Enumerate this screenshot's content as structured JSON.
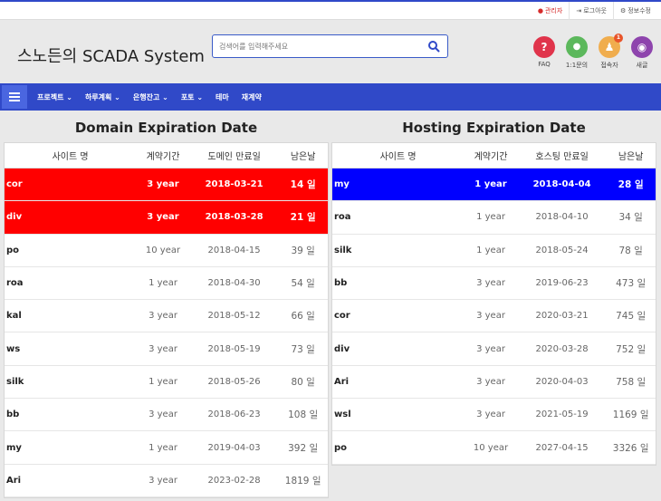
{
  "topbar": {
    "links": [
      {
        "icon": "user-icon",
        "label": "관리자"
      },
      {
        "icon": "logout-icon",
        "label": "로그아웃"
      },
      {
        "icon": "gear-icon",
        "label": "정보수정"
      }
    ]
  },
  "header": {
    "title": "스노든의 SCADA System",
    "search_placeholder": "검색어를 입력해주세요",
    "quick_buttons": [
      {
        "icon": "question-icon",
        "glyph": "?",
        "color": "#e0344b",
        "label": "FAQ"
      },
      {
        "icon": "chat-icon",
        "glyph": "●",
        "color": "#5cb85c",
        "label": "1:1문의"
      },
      {
        "icon": "visitor-icon",
        "glyph": "♟",
        "color": "#f0ad4e",
        "label": "접속자",
        "badge": "1"
      },
      {
        "icon": "new-post-icon",
        "glyph": "◉",
        "color": "#8e44ad",
        "label": "새글"
      }
    ]
  },
  "nav": {
    "items": [
      "프로젝트 ⌄",
      "하루계획 ⌄",
      "은행잔고 ⌄",
      "포토 ⌄",
      "테마",
      "재계약"
    ]
  },
  "domain": {
    "title": "Domain Expiration Date",
    "columns": [
      "사이트 명",
      "계약기간",
      "도메인 만료일",
      "남은날"
    ],
    "rows": [
      {
        "site": "cor",
        "term": "3 year",
        "date": "2018-03-21",
        "days": "14 일",
        "hl": "red"
      },
      {
        "site": "div",
        "term": "3 year",
        "date": "2018-03-28",
        "days": "21 일",
        "hl": "red"
      },
      {
        "site": "po",
        "term": "10 year",
        "date": "2018-04-15",
        "days": "39 일",
        "hl": ""
      },
      {
        "site": "roa",
        "term": "1 year",
        "date": "2018-04-30",
        "days": "54 일",
        "hl": ""
      },
      {
        "site": "kal",
        "term": "3 year",
        "date": "2018-05-12",
        "days": "66 일",
        "hl": ""
      },
      {
        "site": "ws",
        "term": "3 year",
        "date": "2018-05-19",
        "days": "73 일",
        "hl": ""
      },
      {
        "site": "silk",
        "term": "1 year",
        "date": "2018-05-26",
        "days": "80 일",
        "hl": ""
      },
      {
        "site": "bb",
        "term": "3 year",
        "date": "2018-06-23",
        "days": "108 일",
        "hl": ""
      },
      {
        "site": "my",
        "term": "1 year",
        "date": "2019-04-03",
        "days": "392 일",
        "hl": ""
      },
      {
        "site": "Ari",
        "term": "3 year",
        "date": "2023-02-28",
        "days": "1819 일",
        "hl": ""
      }
    ]
  },
  "hosting": {
    "title": "Hosting Expiration Date",
    "columns": [
      "사이트 명",
      "계약기간",
      "호스팅 만료일",
      "남은날"
    ],
    "rows": [
      {
        "site": "my",
        "term": "1 year",
        "date": "2018-04-04",
        "days": "28 일",
        "hl": "blue"
      },
      {
        "site": "roa",
        "term": "1 year",
        "date": "2018-04-10",
        "days": "34 일",
        "hl": ""
      },
      {
        "site": "silk",
        "term": "1 year",
        "date": "2018-05-24",
        "days": "78 일",
        "hl": ""
      },
      {
        "site": "bb",
        "term": "3 year",
        "date": "2019-06-23",
        "days": "473 일",
        "hl": ""
      },
      {
        "site": "cor",
        "term": "3 year",
        "date": "2020-03-21",
        "days": "745 일",
        "hl": ""
      },
      {
        "site": "div",
        "term": "3 year",
        "date": "2020-03-28",
        "days": "752 일",
        "hl": ""
      },
      {
        "site": "Ari",
        "term": "3 year",
        "date": "2020-04-03",
        "days": "758 일",
        "hl": ""
      },
      {
        "site": "wsl",
        "term": "3 year",
        "date": "2021-05-19",
        "days": "1169 일",
        "hl": ""
      },
      {
        "site": "po",
        "term": "10 year",
        "date": "2027-04-15",
        "days": "3326 일",
        "hl": ""
      }
    ]
  }
}
